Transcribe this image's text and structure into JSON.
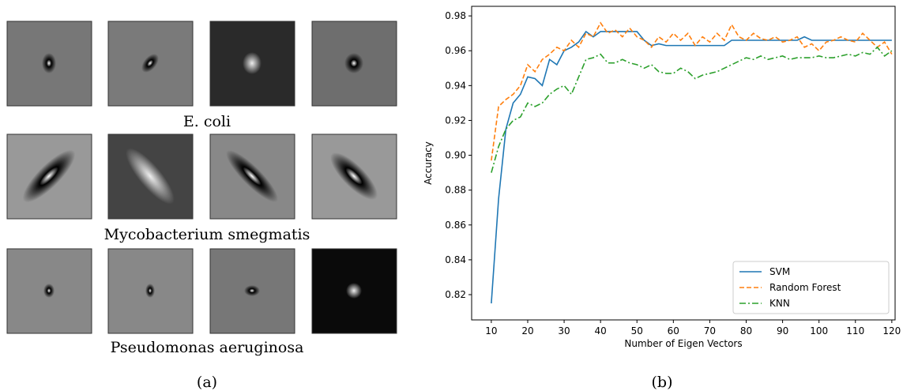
{
  "panel_a": {
    "rows": [
      {
        "label": "E. coli"
      },
      {
        "label": "Mycobacterium smegmatis"
      },
      {
        "label": "Pseudomonas aeruginosa"
      }
    ]
  },
  "captions": [
    "(a)",
    "(b)"
  ],
  "chart_data": {
    "type": "line",
    "x_label": "Number of Eigen Vectors",
    "y_label": "Accuracy",
    "x": [
      10,
      12,
      14,
      16,
      18,
      20,
      22,
      24,
      26,
      28,
      30,
      32,
      34,
      36,
      38,
      40,
      42,
      44,
      46,
      48,
      50,
      52,
      54,
      56,
      58,
      60,
      62,
      64,
      66,
      68,
      70,
      72,
      74,
      76,
      78,
      80,
      82,
      84,
      86,
      88,
      90,
      92,
      94,
      96,
      98,
      100,
      102,
      104,
      106,
      108,
      110,
      112,
      114,
      116,
      118,
      120
    ],
    "series": [
      {
        "name": "SVM",
        "color": "#1f77b4",
        "linestyle": "solid",
        "values": [
          0.815,
          0.875,
          0.915,
          0.93,
          0.935,
          0.945,
          0.944,
          0.94,
          0.955,
          0.952,
          0.96,
          0.962,
          0.965,
          0.971,
          0.968,
          0.971,
          0.971,
          0.971,
          0.971,
          0.971,
          0.971,
          0.966,
          0.963,
          0.964,
          0.963,
          0.963,
          0.963,
          0.963,
          0.963,
          0.963,
          0.963,
          0.963,
          0.963,
          0.966,
          0.966,
          0.966,
          0.966,
          0.966,
          0.966,
          0.966,
          0.966,
          0.966,
          0.966,
          0.968,
          0.966,
          0.966,
          0.966,
          0.966,
          0.966,
          0.966,
          0.966,
          0.966,
          0.966,
          0.966,
          0.966,
          0.966
        ]
      },
      {
        "name": "Random Forest",
        "color": "#ff7f0e",
        "linestyle": "dashed",
        "values": [
          0.897,
          0.928,
          0.932,
          0.935,
          0.94,
          0.952,
          0.948,
          0.955,
          0.958,
          0.962,
          0.96,
          0.966,
          0.962,
          0.97,
          0.968,
          0.976,
          0.97,
          0.972,
          0.968,
          0.973,
          0.968,
          0.966,
          0.962,
          0.968,
          0.965,
          0.97,
          0.966,
          0.97,
          0.963,
          0.968,
          0.965,
          0.97,
          0.966,
          0.975,
          0.968,
          0.966,
          0.97,
          0.967,
          0.966,
          0.968,
          0.965,
          0.966,
          0.968,
          0.962,
          0.964,
          0.96,
          0.965,
          0.966,
          0.968,
          0.966,
          0.965,
          0.97,
          0.966,
          0.962,
          0.965,
          0.958
        ]
      },
      {
        "name": "KNN",
        "color": "#2ca02c",
        "linestyle": "dashdot",
        "values": [
          0.89,
          0.905,
          0.915,
          0.92,
          0.922,
          0.93,
          0.928,
          0.93,
          0.935,
          0.938,
          0.94,
          0.935,
          0.945,
          0.955,
          0.956,
          0.958,
          0.953,
          0.953,
          0.955,
          0.953,
          0.952,
          0.95,
          0.952,
          0.948,
          0.947,
          0.947,
          0.95,
          0.948,
          0.944,
          0.946,
          0.947,
          0.948,
          0.95,
          0.952,
          0.954,
          0.956,
          0.955,
          0.957,
          0.955,
          0.956,
          0.957,
          0.955,
          0.956,
          0.956,
          0.956,
          0.957,
          0.956,
          0.956,
          0.957,
          0.958,
          0.957,
          0.959,
          0.958,
          0.962,
          0.957,
          0.96
        ]
      }
    ],
    "xlim": [
      4.6,
      120.9
    ],
    "ylim": [
      0.8055,
      0.9855
    ],
    "xticks": [
      10,
      20,
      30,
      40,
      50,
      60,
      70,
      80,
      90,
      100,
      110,
      120
    ],
    "yticks": [
      0.82,
      0.84,
      0.86,
      0.88,
      {
        "value": 0.9,
        "label": "0.90"
      },
      0.92,
      0.94,
      0.96,
      0.98
    ],
    "legend": "lower right"
  }
}
